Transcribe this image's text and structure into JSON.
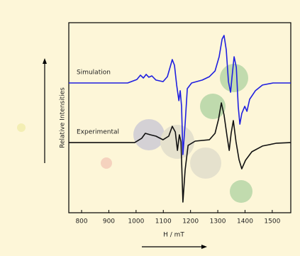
{
  "chart_data": {
    "type": "line",
    "xlabel": "H / mT",
    "ylabel": "Relative Intensities",
    "xlim": [
      753,
      1568
    ],
    "ylim": [
      0,
      100
    ],
    "xticks": [
      800,
      900,
      1000,
      1100,
      1200,
      1300,
      1400,
      1500
    ],
    "series": [
      {
        "name": "Simulation",
        "color": "#1f1fe0",
        "x": [
          753,
          969,
          1003,
          1016,
          1027,
          1037,
          1047,
          1058,
          1073,
          1099,
          1115,
          1126,
          1133,
          1141,
          1149,
          1157,
          1162,
          1167,
          1172,
          1180,
          1188,
          1204,
          1243,
          1269,
          1290,
          1305,
          1316,
          1323,
          1331,
          1339,
          1347,
          1352,
          1360,
          1368,
          1375,
          1381,
          1388,
          1399,
          1407,
          1417,
          1438,
          1464,
          1503,
          1568
        ],
        "values": [
          68.3,
          68.3,
          70.1,
          72.4,
          70.9,
          72.8,
          71.3,
          72.0,
          69.8,
          69.0,
          71.6,
          77.2,
          80.6,
          77.6,
          67.2,
          59.0,
          64.2,
          56.0,
          30.6,
          46.6,
          65.3,
          68.3,
          69.8,
          71.6,
          74.6,
          82.1,
          91.4,
          93.3,
          85.8,
          69.0,
          63.4,
          70.9,
          82.1,
          76.5,
          56.0,
          46.6,
          52.2,
          56.0,
          53.4,
          59.7,
          64.2,
          67.2,
          68.3,
          68.3
        ]
      },
      {
        "name": "Experimental",
        "color": "#111111",
        "x": [
          753,
          995,
          1021,
          1034,
          1053,
          1073,
          1099,
          1120,
          1133,
          1144,
          1152,
          1159,
          1165,
          1172,
          1180,
          1191,
          1217,
          1269,
          1290,
          1303,
          1313,
          1323,
          1334,
          1342,
          1349,
          1357,
          1367,
          1378,
          1388,
          1402,
          1425,
          1464,
          1516,
          1568
        ],
        "values": [
          36.9,
          36.9,
          39.2,
          41.8,
          41.0,
          40.3,
          38.4,
          40.3,
          45.5,
          42.5,
          32.8,
          41.0,
          37.3,
          5.6,
          22.4,
          35.4,
          37.7,
          38.4,
          41.8,
          49.3,
          57.8,
          51.5,
          40.3,
          32.8,
          41.8,
          48.5,
          37.3,
          28.0,
          23.1,
          27.6,
          32.1,
          35.1,
          36.6,
          36.9
        ]
      }
    ]
  }
}
